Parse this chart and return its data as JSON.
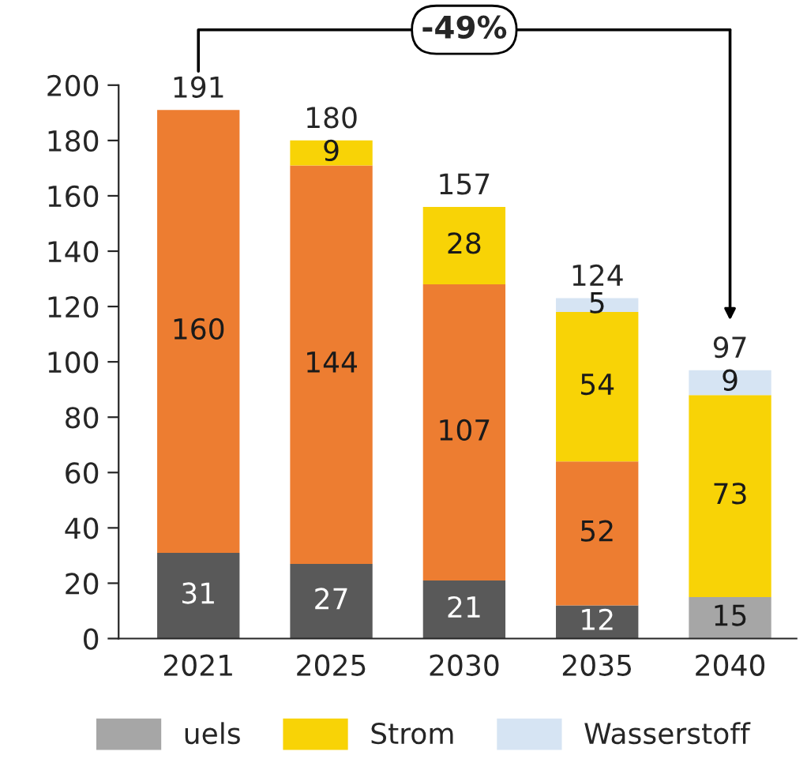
{
  "chart_data": {
    "type": "bar",
    "stacked": true,
    "categories": [
      "2021",
      "2025",
      "2030",
      "2035",
      "2040"
    ],
    "series": [
      {
        "name": "uels",
        "colors": [
          "#595959",
          "#595959",
          "#595959",
          "#595959",
          "#a6a6a6"
        ],
        "values": [
          31,
          27,
          21,
          12,
          15
        ]
      },
      {
        "color": "#ed7d31",
        "values": [
          160,
          144,
          107,
          52,
          null
        ]
      },
      {
        "name": "Strom",
        "color": "#f8d306",
        "values": [
          null,
          9,
          28,
          54,
          73
        ]
      },
      {
        "name": "Wasserstoff",
        "color": "#d6e4f3",
        "values": [
          null,
          null,
          null,
          5,
          9
        ]
      }
    ],
    "data_labels": true,
    "totals": [
      "191",
      "180",
      "157",
      "124",
      "97"
    ],
    "ylim": [
      0,
      200
    ],
    "yticks": [
      0,
      20,
      40,
      60,
      80,
      100,
      120,
      140,
      160,
      180,
      200
    ],
    "annotations": [
      "-49%"
    ],
    "grid": false,
    "legend": "bottom"
  }
}
